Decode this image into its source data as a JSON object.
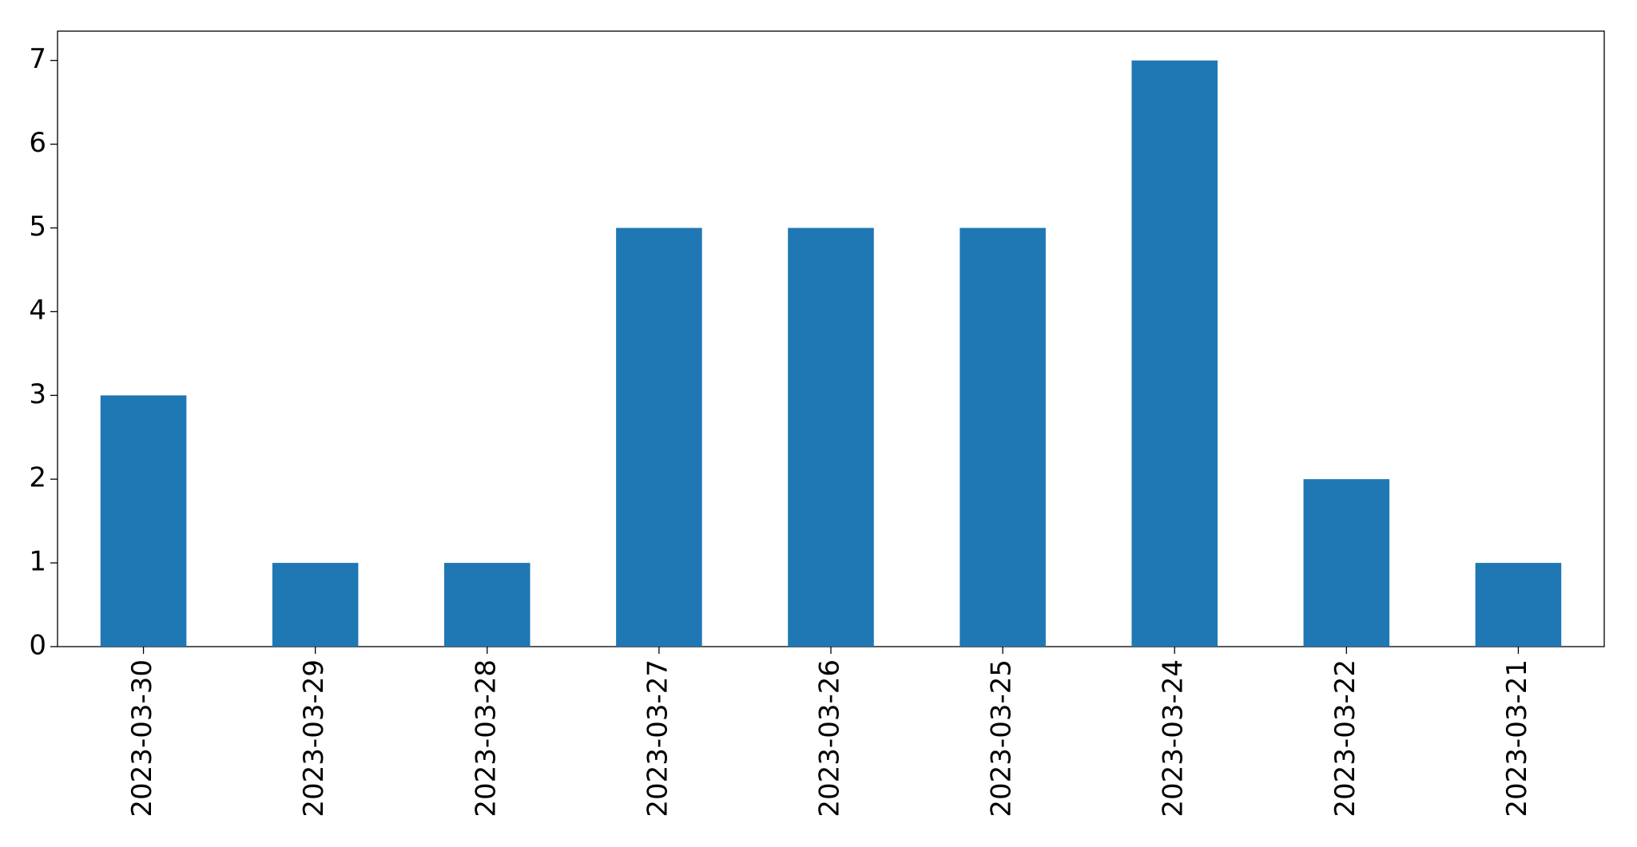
{
  "chart_data": {
    "type": "bar",
    "categories": [
      "2023-03-30",
      "2023-03-29",
      "2023-03-28",
      "2023-03-27",
      "2023-03-26",
      "2023-03-25",
      "2023-03-24",
      "2023-03-22",
      "2023-03-21"
    ],
    "values": [
      3,
      1,
      1,
      5,
      5,
      5,
      7,
      2,
      1
    ],
    "color": "#1f77b4",
    "ylim": [
      0,
      7.35
    ],
    "yticks": [
      0,
      1,
      2,
      3,
      4,
      5,
      6,
      7
    ],
    "grid": false
  }
}
